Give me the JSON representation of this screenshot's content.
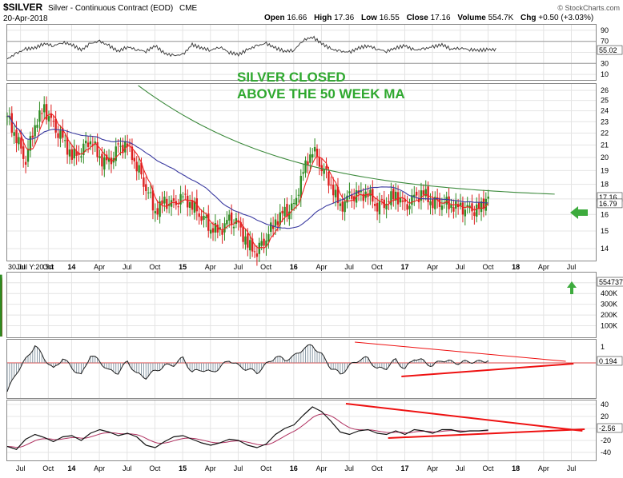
{
  "header": {
    "symbol": "$SILVER",
    "description": "Silver - Continuous Contract (EOD)",
    "exchange": "CME",
    "date": "20-Apr-2018",
    "watermark": "© StockCharts.com",
    "open_label": "Open",
    "open": "16.66",
    "high_label": "High",
    "high": "17.36",
    "low_label": "Low",
    "low": "16.55",
    "close_label": "Close",
    "close": "17.16",
    "volume_label": "Volume",
    "volume": "554.7K",
    "chg_label": "Chg",
    "chg": "+0.50 (+3.03%)"
  },
  "annotation": {
    "line1": "SILVER CLOSED",
    "line2": "ABOVE THE 50 WEEK MA"
  },
  "colors": {
    "up": "#2e8b22",
    "down": "#dd1f1f",
    "ma_short": "#ee2222",
    "ma_mid": "#3a3aa0",
    "ma_long": "#3c8a3c",
    "annotation": "#2fa82f",
    "trendline": "#ee1111",
    "arrow": "#3dab3d"
  },
  "price_label": "17.16",
  "ma_label": "16.79",
  "low_tag": "30 Jul Y:20.94",
  "chart_data": [
    {
      "panel": "rsi",
      "type": "line",
      "yticks": [
        10,
        30,
        50,
        70,
        90
      ],
      "ylim": [
        0,
        100
      ],
      "last_value_label": "55.02",
      "x_start": 2013.42,
      "x_step": 0.0833,
      "values": [
        38,
        48,
        56,
        58,
        66,
        62,
        68,
        64,
        54,
        66,
        70,
        62,
        52,
        60,
        55,
        52,
        62,
        48,
        44,
        46,
        64,
        58,
        54,
        60,
        50,
        46,
        55,
        62,
        66,
        58,
        52,
        54,
        72,
        78,
        66,
        56,
        52,
        50,
        58,
        62,
        56,
        52,
        58,
        62,
        54,
        56,
        60,
        64,
        56,
        58,
        55,
        54,
        55
      ]
    },
    {
      "panel": "price",
      "type": "candlestick",
      "title": "",
      "log_scale": true,
      "yticks": [
        14,
        15,
        16,
        17,
        18,
        19,
        20,
        21,
        22,
        23,
        24,
        25,
        26
      ],
      "ylim": [
        13.4,
        26.5
      ],
      "x_start": 2013.42,
      "x_step": 0.0833,
      "close": [
        23.5,
        21.6,
        19.9,
        22.8,
        24.2,
        22.5,
        21.4,
        20.1,
        20.6,
        21.6,
        19.9,
        19.5,
        20.7,
        21.0,
        19.4,
        17.9,
        16.2,
        16.8,
        16.5,
        17.1,
        16.6,
        16.0,
        15.2,
        15.0,
        15.6,
        15.3,
        14.2,
        13.9,
        14.7,
        15.6,
        16.1,
        16.4,
        18.9,
        20.7,
        19.4,
        18.0,
        16.4,
        17.1,
        17.2,
        17.4,
        16.6,
        16.9,
        17.3,
        16.4,
        17.0,
        17.4,
        16.8,
        16.9,
        16.6,
        16.4,
        16.2,
        16.3,
        17.16
      ],
      "ma_short_note": "10-week moving average (red)",
      "ma_mid_note": "50-week moving average (blue)",
      "ma_long_note": "200-week moving average (green)"
    },
    {
      "panel": "volume",
      "type": "bar",
      "yticks": [
        "100K",
        "200K",
        "300K",
        "400K",
        "500K"
      ],
      "ylim": [
        0,
        580
      ],
      "last_value_label": "554737",
      "values_k": [
        305,
        290,
        280,
        300,
        285,
        295,
        270,
        290,
        300,
        270,
        295,
        285,
        280,
        300,
        290,
        310,
        295,
        300,
        285,
        295,
        300,
        305,
        310,
        300,
        320,
        305,
        315,
        300,
        310,
        330,
        340,
        360,
        420,
        400,
        410,
        380,
        420,
        440,
        450,
        430,
        445,
        455,
        470,
        455,
        460,
        465,
        470,
        480,
        465,
        470,
        480,
        520,
        554.7
      ]
    },
    {
      "panel": "oscillator_1",
      "type": "area",
      "ytick": "1",
      "last_value_label": "0.194",
      "values": [
        -1.8,
        -0.6,
        0.2,
        1.1,
        0.3,
        -0.4,
        0.3,
        -0.3,
        -0.8,
        0.5,
        0.1,
        -0.5,
        -0.6,
        0.1,
        -0.7,
        -0.9,
        -0.5,
        -0.2,
        -0.1,
        0.3,
        -0.6,
        -0.4,
        -0.6,
        -0.3,
        0.2,
        -0.2,
        -0.4,
        -0.6,
        -0.1,
        0.4,
        0.2,
        0.4,
        0.9,
        1.1,
        0.5,
        -0.3,
        -0.7,
        -0.2,
        0.2,
        0.3,
        -0.4,
        -0.3,
        0.2,
        -0.4,
        0.3,
        0.1,
        -0.2,
        0.2,
        0.05,
        0.0,
        0.1,
        0.05,
        0.194
      ]
    },
    {
      "panel": "oscillator_2",
      "type": "line",
      "yticks": [
        40,
        20,
        0,
        -20,
        -40
      ],
      "last_value_label": "-2.56",
      "values": [
        -30,
        -35,
        -18,
        -10,
        -15,
        -22,
        -14,
        -12,
        -20,
        -8,
        -2,
        -6,
        -12,
        -8,
        -14,
        -28,
        -32,
        -22,
        -14,
        -12,
        -18,
        -24,
        -28,
        -24,
        -18,
        -20,
        -28,
        -32,
        -26,
        -10,
        0,
        6,
        22,
        36,
        28,
        12,
        -6,
        -10,
        -4,
        -2,
        -8,
        -10,
        -4,
        -10,
        -2,
        -4,
        -8,
        -2,
        -2,
        -6,
        -4,
        -4,
        -2.56
      ]
    }
  ],
  "x_axis": {
    "labels": [
      {
        "t": 2013.54,
        "text": "Jul"
      },
      {
        "t": 2013.79,
        "text": "Oct"
      },
      {
        "t": 2014.0,
        "text": "14"
      },
      {
        "t": 2014.25,
        "text": "Apr"
      },
      {
        "t": 2014.5,
        "text": "Jul"
      },
      {
        "t": 2014.75,
        "text": "Oct"
      },
      {
        "t": 2015.0,
        "text": "15"
      },
      {
        "t": 2015.25,
        "text": "Apr"
      },
      {
        "t": 2015.5,
        "text": "Jul"
      },
      {
        "t": 2015.75,
        "text": "Oct"
      },
      {
        "t": 2016.0,
        "text": "16"
      },
      {
        "t": 2016.25,
        "text": "Apr"
      },
      {
        "t": 2016.5,
        "text": "Jul"
      },
      {
        "t": 2016.75,
        "text": "Oct"
      },
      {
        "t": 2017.0,
        "text": "17"
      },
      {
        "t": 2017.25,
        "text": "Apr"
      },
      {
        "t": 2017.5,
        "text": "Jul"
      },
      {
        "t": 2017.75,
        "text": "Oct"
      },
      {
        "t": 2018.0,
        "text": "18"
      },
      {
        "t": 2018.25,
        "text": "Apr"
      },
      {
        "t": 2018.5,
        "text": "Jul"
      }
    ]
  }
}
